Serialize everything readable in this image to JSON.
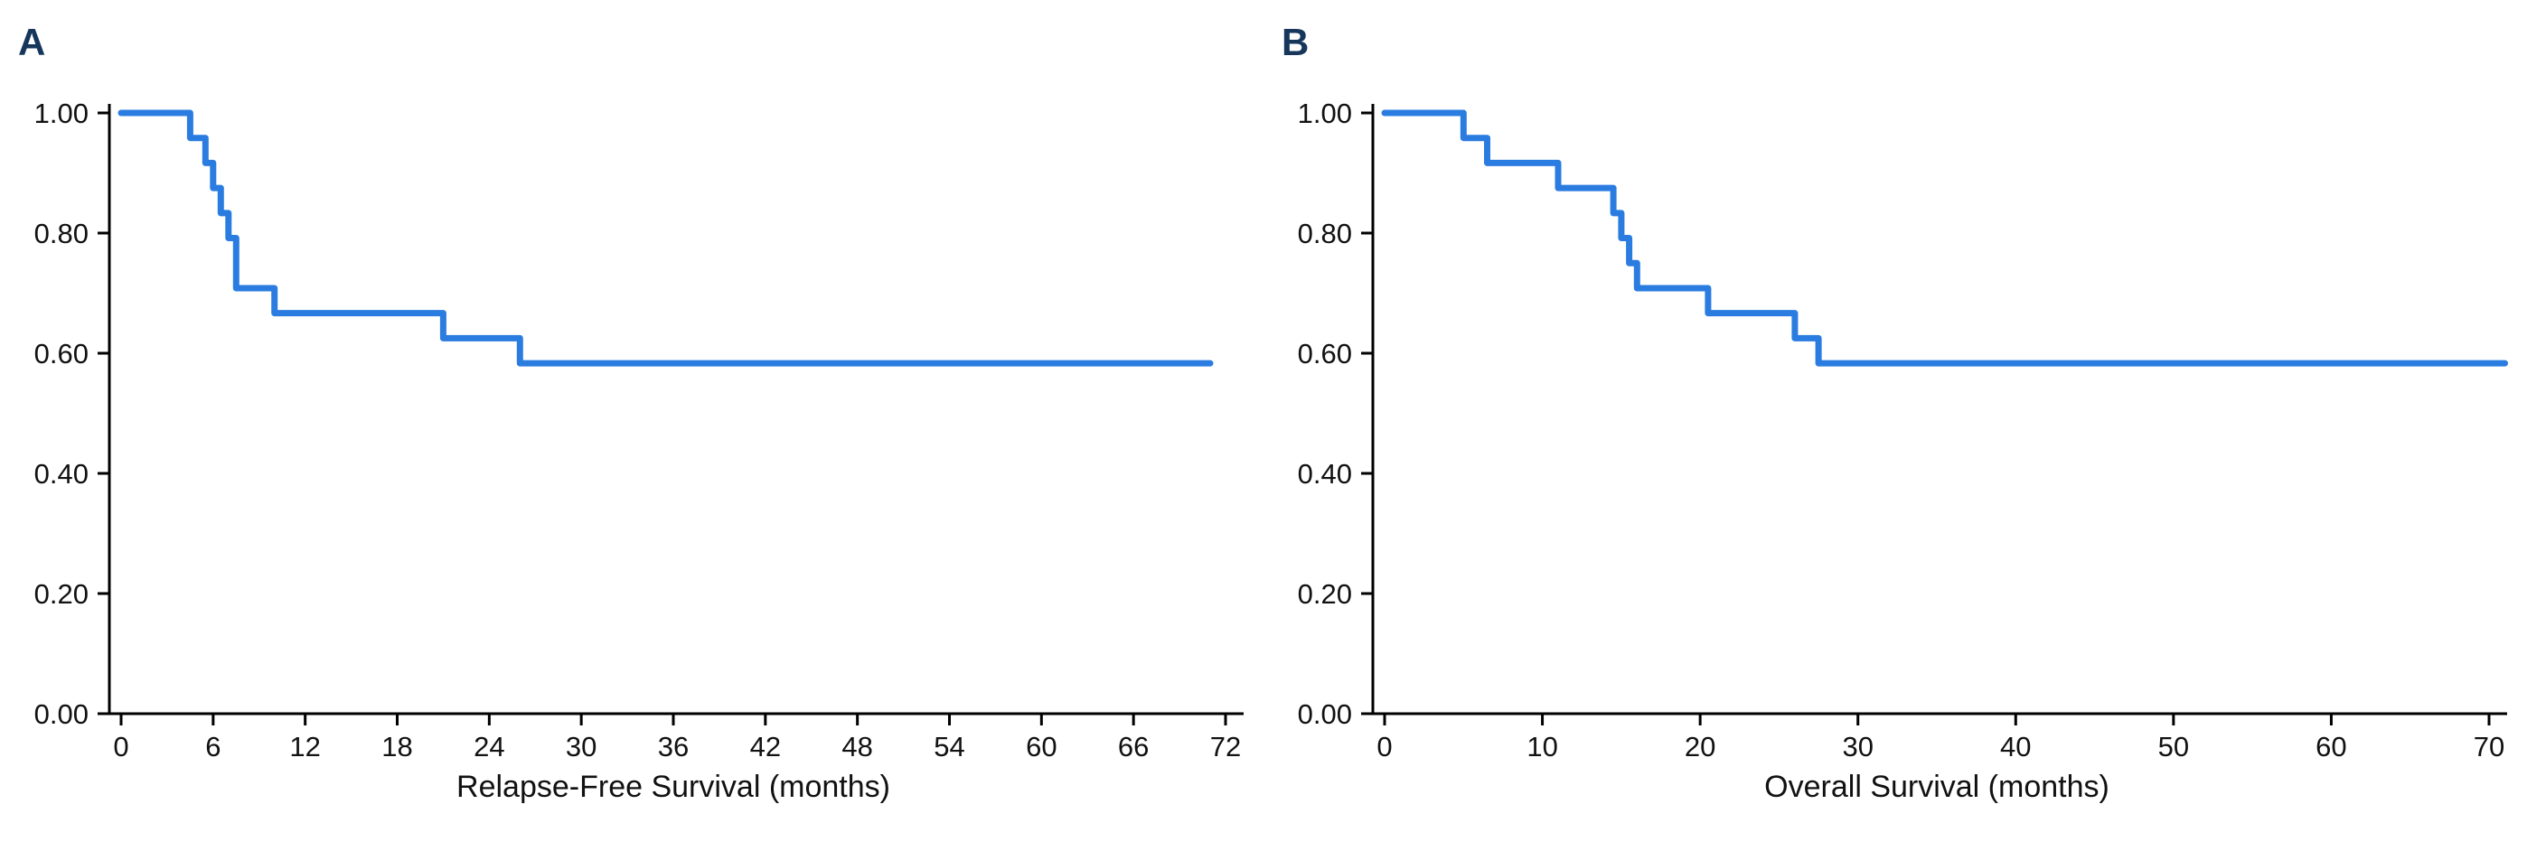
{
  "colors": {
    "curve": "#2B7CE0",
    "panel_label": "#16365C",
    "axis": "#000000",
    "tick_text": "#111111"
  },
  "chart_data": [
    {
      "type": "line",
      "subtype": "kaplan-meier-step",
      "panel_label": "A",
      "xlabel": "Relapse-Free Survival (months)",
      "ylabel": "",
      "xlim": [
        0,
        72
      ],
      "ylim": [
        0,
        1.0
      ],
      "grid": false,
      "legend": "none",
      "x_ticks": [
        0,
        6,
        12,
        18,
        24,
        30,
        36,
        42,
        48,
        54,
        60,
        66,
        72
      ],
      "y_ticks": [
        0.0,
        0.2,
        0.4,
        0.6,
        0.8,
        1.0
      ],
      "y_tick_labels": [
        "0.00",
        "0.20",
        "0.40",
        "0.60",
        "0.80",
        "1.00"
      ],
      "step_points": [
        {
          "x": 0,
          "y": 1.0
        },
        {
          "x": 4.5,
          "y": 0.9583
        },
        {
          "x": 5.5,
          "y": 0.9167
        },
        {
          "x": 6.0,
          "y": 0.875
        },
        {
          "x": 6.5,
          "y": 0.8333
        },
        {
          "x": 7.0,
          "y": 0.7917
        },
        {
          "x": 7.5,
          "y": 0.7083
        },
        {
          "x": 10.0,
          "y": 0.6667
        },
        {
          "x": 21.0,
          "y": 0.625
        },
        {
          "x": 26.0,
          "y": 0.5833
        },
        {
          "x": 71.0,
          "y": 0.5833
        }
      ]
    },
    {
      "type": "line",
      "subtype": "kaplan-meier-step",
      "panel_label": "B",
      "xlabel": "Overall Survival (months)",
      "ylabel": "",
      "xlim": [
        0,
        70
      ],
      "ylim": [
        0,
        1.0
      ],
      "grid": false,
      "legend": "none",
      "x_ticks": [
        0,
        10,
        20,
        30,
        40,
        50,
        60,
        70
      ],
      "y_ticks": [
        0.0,
        0.2,
        0.4,
        0.6,
        0.8,
        1.0
      ],
      "y_tick_labels": [
        "0.00",
        "0.20",
        "0.40",
        "0.60",
        "0.80",
        "1.00"
      ],
      "step_points": [
        {
          "x": 0,
          "y": 1.0
        },
        {
          "x": 5.0,
          "y": 0.9583
        },
        {
          "x": 6.5,
          "y": 0.9167
        },
        {
          "x": 11.0,
          "y": 0.875
        },
        {
          "x": 14.5,
          "y": 0.8333
        },
        {
          "x": 15.0,
          "y": 0.7917
        },
        {
          "x": 15.5,
          "y": 0.75
        },
        {
          "x": 16.0,
          "y": 0.7083
        },
        {
          "x": 20.5,
          "y": 0.6667
        },
        {
          "x": 26.0,
          "y": 0.625
        },
        {
          "x": 27.5,
          "y": 0.5833
        },
        {
          "x": 71.0,
          "y": 0.5833
        }
      ]
    }
  ]
}
